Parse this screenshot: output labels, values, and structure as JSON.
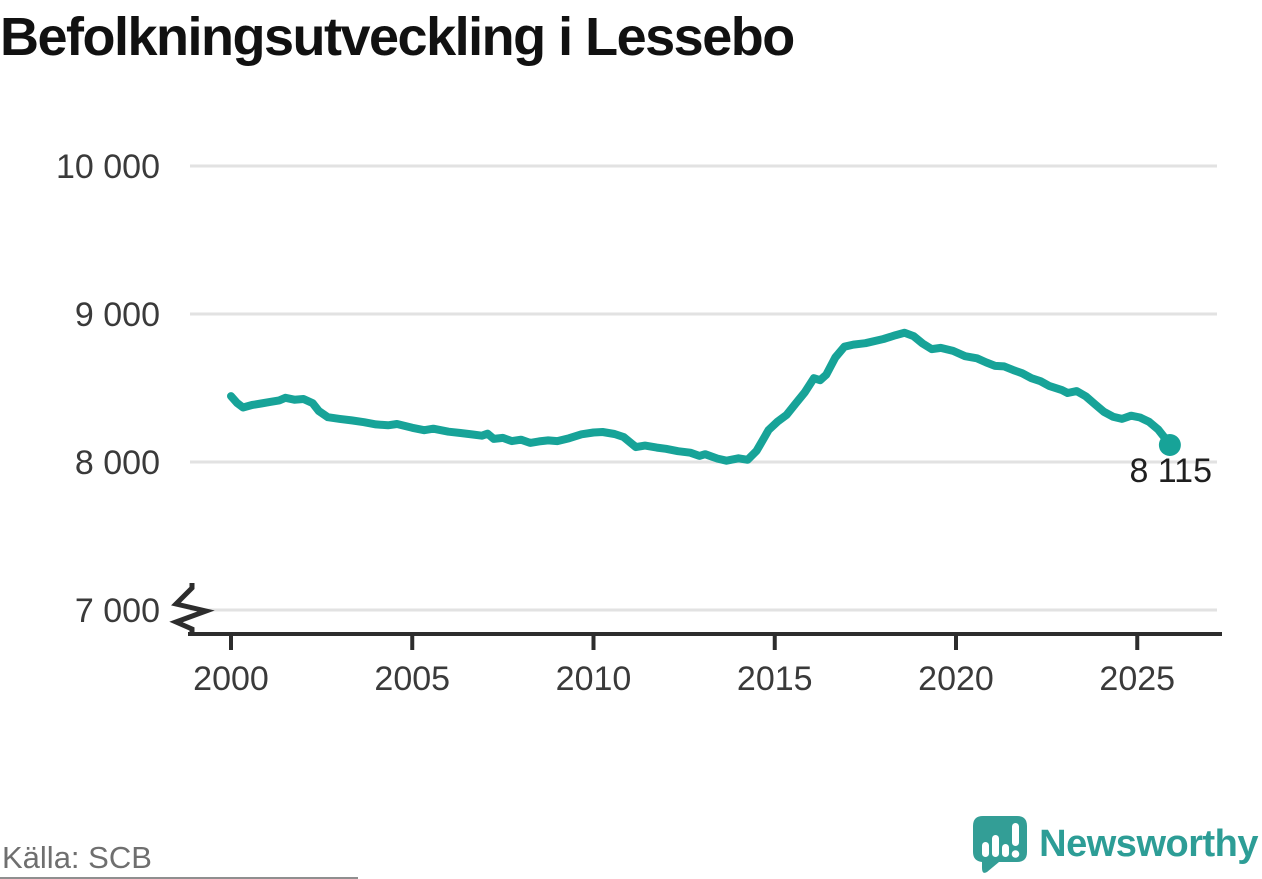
{
  "title": "Befolkningsutveckling i Lessebo",
  "source": "Källa: SCB",
  "branding": {
    "name": "Newsworthy",
    "icon": "newsworthy-speech-bubble-barchart-icon",
    "color": "#2d9d96"
  },
  "colors": {
    "line": "#17a398",
    "dot": "#17a398",
    "grid": "#e2e2e2",
    "axis": "#2d2d2d",
    "tick_label": "#3a3a3a",
    "annotation": "#1f1f1f",
    "title": "#111111",
    "source": "#6f6f6f"
  },
  "chart_data": {
    "type": "line",
    "title": "Befolkningsutveckling i Lessebo",
    "xlabel": "",
    "ylabel": "",
    "grid": "horizontal",
    "legend": "none",
    "axis_break_at_bottom": true,
    "xlim": [
      1998.9,
      2027.3
    ],
    "ylim": [
      7000,
      10000
    ],
    "x_ticks": [
      2000,
      2005,
      2010,
      2015,
      2020,
      2025
    ],
    "x_tick_labels": [
      "2000",
      "2005",
      "2010",
      "2015",
      "2020",
      "2025"
    ],
    "y_ticks": [
      7000,
      8000,
      9000,
      10000
    ],
    "y_tick_labels": [
      "7 000",
      "8 000",
      "9 000",
      "10 000"
    ],
    "last_point": {
      "year": 2025.9,
      "value": 8115,
      "label": "8 115"
    },
    "points": [
      [
        2000.0,
        8445
      ],
      [
        2000.17,
        8398
      ],
      [
        2000.33,
        8368
      ],
      [
        2000.58,
        8385
      ],
      [
        2000.83,
        8395
      ],
      [
        2001.08,
        8406
      ],
      [
        2001.33,
        8416
      ],
      [
        2001.5,
        8434
      ],
      [
        2001.75,
        8421
      ],
      [
        2002.0,
        8426
      ],
      [
        2002.25,
        8398
      ],
      [
        2002.42,
        8345
      ],
      [
        2002.67,
        8303
      ],
      [
        2003.0,
        8291
      ],
      [
        2003.33,
        8281
      ],
      [
        2003.67,
        8269
      ],
      [
        2004.0,
        8254
      ],
      [
        2004.33,
        8248
      ],
      [
        2004.58,
        8257
      ],
      [
        2005.0,
        8231
      ],
      [
        2005.33,
        8215
      ],
      [
        2005.58,
        8225
      ],
      [
        2006.0,
        8205
      ],
      [
        2006.33,
        8196
      ],
      [
        2006.67,
        8186
      ],
      [
        2006.92,
        8178
      ],
      [
        2007.08,
        8191
      ],
      [
        2007.25,
        8156
      ],
      [
        2007.5,
        8163
      ],
      [
        2007.75,
        8141
      ],
      [
        2008.0,
        8151
      ],
      [
        2008.25,
        8129
      ],
      [
        2008.5,
        8139
      ],
      [
        2008.75,
        8146
      ],
      [
        2009.0,
        8141
      ],
      [
        2009.33,
        8161
      ],
      [
        2009.67,
        8187
      ],
      [
        2010.0,
        8199
      ],
      [
        2010.25,
        8203
      ],
      [
        2010.58,
        8189
      ],
      [
        2010.83,
        8169
      ],
      [
        2011.17,
        8101
      ],
      [
        2011.42,
        8111
      ],
      [
        2011.75,
        8097
      ],
      [
        2012.0,
        8089
      ],
      [
        2012.33,
        8073
      ],
      [
        2012.67,
        8063
      ],
      [
        2012.92,
        8041
      ],
      [
        2013.08,
        8053
      ],
      [
        2013.42,
        8023
      ],
      [
        2013.67,
        8009
      ],
      [
        2014.0,
        8025
      ],
      [
        2014.25,
        8015
      ],
      [
        2014.5,
        8076
      ],
      [
        2014.83,
        8216
      ],
      [
        2015.08,
        8273
      ],
      [
        2015.33,
        8319
      ],
      [
        2015.58,
        8396
      ],
      [
        2015.83,
        8471
      ],
      [
        2016.08,
        8566
      ],
      [
        2016.25,
        8553
      ],
      [
        2016.42,
        8589
      ],
      [
        2016.67,
        8706
      ],
      [
        2016.92,
        8779
      ],
      [
        2017.17,
        8793
      ],
      [
        2017.5,
        8803
      ],
      [
        2018.0,
        8831
      ],
      [
        2018.33,
        8857
      ],
      [
        2018.58,
        8873
      ],
      [
        2018.83,
        8851
      ],
      [
        2019.08,
        8801
      ],
      [
        2019.33,
        8763
      ],
      [
        2019.58,
        8771
      ],
      [
        2019.92,
        8751
      ],
      [
        2020.25,
        8715
      ],
      [
        2020.58,
        8701
      ],
      [
        2020.83,
        8673
      ],
      [
        2021.08,
        8649
      ],
      [
        2021.33,
        8646
      ],
      [
        2021.58,
        8621
      ],
      [
        2021.83,
        8599
      ],
      [
        2022.08,
        8566
      ],
      [
        2022.33,
        8546
      ],
      [
        2022.58,
        8513
      ],
      [
        2022.92,
        8486
      ],
      [
        2023.08,
        8466
      ],
      [
        2023.33,
        8479
      ],
      [
        2023.58,
        8444
      ],
      [
        2023.83,
        8391
      ],
      [
        2024.08,
        8339
      ],
      [
        2024.33,
        8306
      ],
      [
        2024.58,
        8291
      ],
      [
        2024.83,
        8313
      ],
      [
        2025.08,
        8301
      ],
      [
        2025.33,
        8271
      ],
      [
        2025.58,
        8219
      ],
      [
        2025.75,
        8166
      ],
      [
        2025.9,
        8115
      ]
    ]
  }
}
